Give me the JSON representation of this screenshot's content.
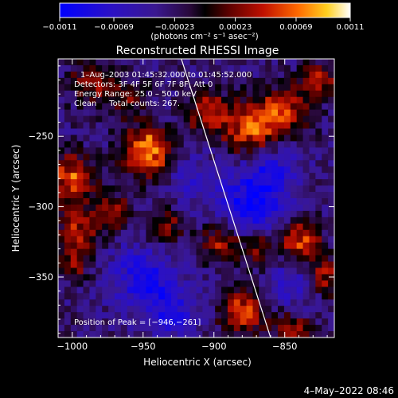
{
  "chart_data": {
    "type": "heatmap",
    "title": "Reconstructed RHESSI Image",
    "xlabel": "Heliocentric X (arcsec)",
    "ylabel": "Heliocentric Y (arcsec)",
    "xlim": [
      -1010,
      -815
    ],
    "ylim": [
      -393,
      -195
    ],
    "xticks": [
      -1000,
      -950,
      -900,
      -850
    ],
    "xtick_labels": [
      "−1000",
      "−950",
      "−900",
      "−850"
    ],
    "yticks": [
      -250,
      -300,
      -350
    ],
    "ytick_labels": [
      "−250",
      "−300",
      "−350"
    ],
    "colorbar": {
      "min": -0.0011,
      "max": 0.0011,
      "ticks": [
        -0.0011,
        -0.00069,
        -0.00023,
        0.00023,
        0.00069,
        0.0011
      ],
      "tick_labels": [
        "−0.0011",
        "−0.00069",
        "−0.00023",
        "0.00023",
        "0.00069",
        "0.0011"
      ],
      "unit_text": "(photons cm⁻² s⁻¹ asec⁻²)"
    },
    "annotations": [
      "1–Aug–2003 01:45:32.000 to 01:45:52.000",
      "Detectors: 3F 4F 5F 6F 7F 8F, Att 0",
      "Energy Range: 25.0 – 50.0 keV",
      "Clean     Total counts: 267."
    ],
    "peak_label": "Position of Peak = [−946,−261]",
    "peak": {
      "x": -946,
      "y": -261
    },
    "limb": [
      {
        "x": -923,
        "y": -195
      },
      {
        "x": -860,
        "y": -393
      }
    ],
    "hot_spots": [
      {
        "x": -946,
        "y": -261,
        "v": 0.0011,
        "r": 12
      },
      {
        "x": -1000,
        "y": -280,
        "v": 0.00085,
        "r": 12
      },
      {
        "x": -985,
        "y": -212,
        "v": 0.0006,
        "r": 11
      },
      {
        "x": -905,
        "y": -233,
        "v": 0.0007,
        "r": 10
      },
      {
        "x": -875,
        "y": -245,
        "v": 0.0009,
        "r": 13
      },
      {
        "x": -850,
        "y": -232,
        "v": 0.00075,
        "r": 12
      },
      {
        "x": -825,
        "y": -210,
        "v": 0.0006,
        "r": 9
      },
      {
        "x": -995,
        "y": -315,
        "v": 0.00065,
        "r": 10
      },
      {
        "x": -970,
        "y": -305,
        "v": 0.00055,
        "r": 9
      },
      {
        "x": -935,
        "y": -315,
        "v": 0.0006,
        "r": 9
      },
      {
        "x": -895,
        "y": -325,
        "v": 0.0007,
        "r": 10
      },
      {
        "x": -868,
        "y": -330,
        "v": 0.00055,
        "r": 9
      },
      {
        "x": -838,
        "y": -325,
        "v": 0.00085,
        "r": 10
      },
      {
        "x": -822,
        "y": -350,
        "v": 0.0007,
        "r": 9
      },
      {
        "x": -1000,
        "y": -340,
        "v": 0.00055,
        "r": 9
      },
      {
        "x": -880,
        "y": -375,
        "v": 0.0008,
        "r": 11
      },
      {
        "x": -845,
        "y": -388,
        "v": 0.00065,
        "r": 9
      },
      {
        "x": -960,
        "y": -225,
        "v": 0.00045,
        "r": 9
      }
    ],
    "cold_spots": [
      {
        "x": -875,
        "y": -300,
        "v": -0.0007,
        "r": 16
      },
      {
        "x": -860,
        "y": -275,
        "v": -0.0005,
        "r": 14
      },
      {
        "x": -950,
        "y": -350,
        "v": -0.0006,
        "r": 16
      },
      {
        "x": -930,
        "y": -375,
        "v": -0.0005,
        "r": 13
      },
      {
        "x": -845,
        "y": -355,
        "v": -0.00045,
        "r": 12
      },
      {
        "x": -915,
        "y": -280,
        "v": -0.00035,
        "r": 12
      }
    ]
  },
  "footer": {
    "date_stamp": "4–May–2022 08:46"
  }
}
